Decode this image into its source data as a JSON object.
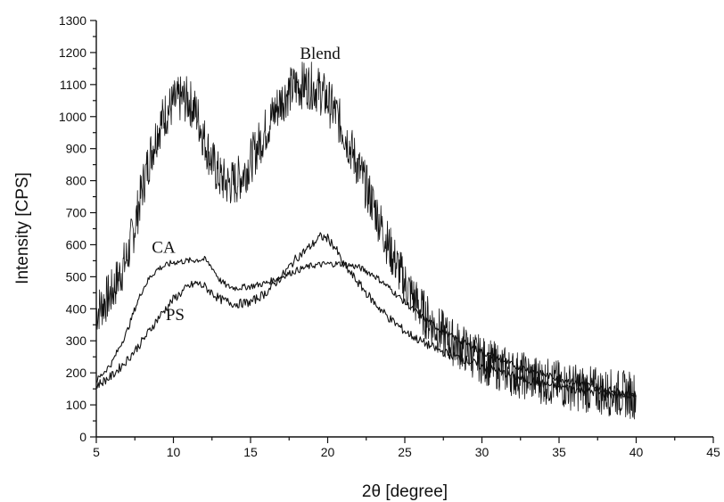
{
  "chart_data": {
    "type": "line",
    "title": "",
    "xlabel": "2θ [degree]",
    "ylabel": "Intensity [CPS]",
    "xlim": [
      5,
      45
    ],
    "ylim": [
      0,
      1300
    ],
    "x_ticks": [
      5,
      10,
      15,
      20,
      25,
      30,
      35,
      40,
      45
    ],
    "y_ticks": [
      0,
      100,
      200,
      300,
      400,
      500,
      600,
      700,
      800,
      900,
      1000,
      1100,
      1200,
      1300
    ],
    "grid": false,
    "legend": "none",
    "series": [
      {
        "name": "Blend",
        "x": [
          5,
          6,
          7,
          7.5,
          8,
          8.5,
          9,
          9.5,
          10,
          10.5,
          11,
          11.5,
          12,
          12.5,
          13,
          13.5,
          14,
          14.5,
          15,
          15.5,
          16,
          16.5,
          17,
          17.5,
          18,
          18.5,
          19,
          19.5,
          20,
          20.5,
          21,
          21.5,
          22,
          23,
          24,
          25,
          26,
          27,
          28,
          29,
          30,
          32,
          34,
          36,
          38,
          40
        ],
        "y": [
          390,
          450,
          560,
          660,
          780,
          880,
          960,
          1010,
          1040,
          1055,
          1050,
          1010,
          930,
          860,
          810,
          790,
          795,
          820,
          860,
          910,
          960,
          1010,
          1050,
          1080,
          1095,
          1100,
          1095,
          1080,
          1050,
          1010,
          960,
          900,
          840,
          720,
          590,
          480,
          400,
          340,
          300,
          270,
          240,
          200,
          175,
          155,
          140,
          130
        ]
      },
      {
        "name": "CA",
        "x": [
          5,
          6,
          7,
          7.5,
          8,
          8.5,
          9,
          10,
          11,
          12,
          12.5,
          13,
          13.5,
          14,
          15,
          16,
          17,
          18,
          19,
          20,
          21,
          22,
          23,
          24,
          25,
          26,
          27,
          28,
          29,
          30,
          32,
          34,
          36,
          38,
          40
        ],
        "y": [
          175,
          230,
          330,
          400,
          460,
          500,
          525,
          545,
          550,
          555,
          530,
          490,
          470,
          465,
          470,
          480,
          500,
          520,
          535,
          540,
          540,
          530,
          505,
          465,
          420,
          380,
          345,
          315,
          290,
          265,
          225,
          195,
          170,
          150,
          130
        ]
      },
      {
        "name": "PS",
        "x": [
          5,
          6,
          7,
          8,
          9,
          10,
          11,
          11.5,
          12,
          12.5,
          13,
          14,
          15,
          16,
          17,
          17.5,
          18,
          19,
          19.5,
          20,
          20.5,
          21,
          22,
          23,
          24,
          25,
          26,
          27,
          28,
          29,
          30,
          32,
          34,
          36,
          38,
          40
        ],
        "y": [
          160,
          190,
          240,
          300,
          370,
          430,
          470,
          480,
          470,
          450,
          430,
          415,
          420,
          450,
          500,
          530,
          560,
          600,
          625,
          620,
          590,
          540,
          480,
          420,
          370,
          330,
          300,
          275,
          255,
          240,
          220,
          190,
          165,
          150,
          135,
          125
        ]
      }
    ]
  }
}
